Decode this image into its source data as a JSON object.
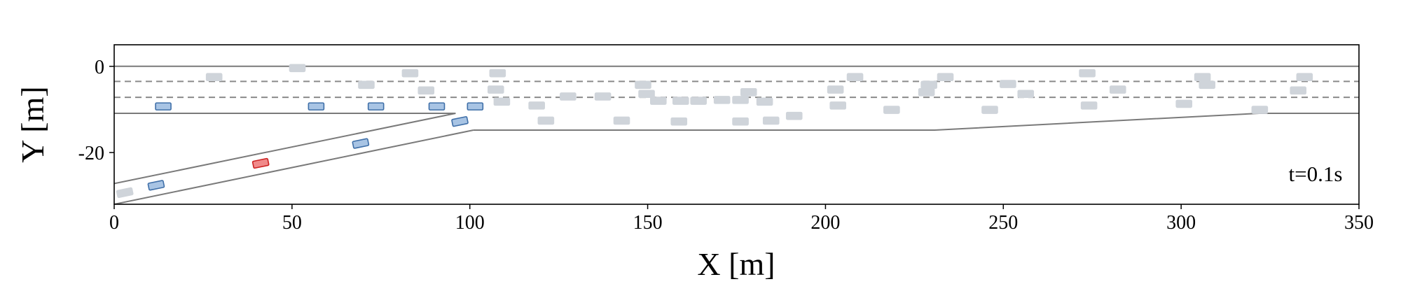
{
  "chart_data": {
    "type": "scatter",
    "x_label": "X [m]",
    "y_label": "Y [m]",
    "annotation": "t=0.1s",
    "xlim": [
      0,
      350
    ],
    "ylim": [
      5,
      -32
    ],
    "xticks": [
      0,
      50,
      100,
      150,
      200,
      250,
      300,
      350
    ],
    "yticks": [
      0,
      -20
    ],
    "lines": [
      {
        "color": "#7a7a7a",
        "style": "solid",
        "x": [
          0,
          350
        ],
        "values": [
          0,
          0
        ]
      },
      {
        "color": "#8a8a8a",
        "style": "dashed",
        "x": [
          0,
          350
        ],
        "values": [
          -3.5,
          -3.5
        ]
      },
      {
        "color": "#8a8a8a",
        "style": "dashed",
        "x": [
          0,
          350
        ],
        "values": [
          -7.2,
          -7.2
        ]
      },
      {
        "color": "#7a7a7a",
        "style": "solid",
        "x": [
          0,
          96
        ],
        "values": [
          -10.9,
          -10.9
        ]
      },
      {
        "color": "#7a7a7a",
        "style": "solid",
        "x": [
          0,
          96
        ],
        "values": [
          -27.2,
          -10.9
        ]
      },
      {
        "color": "#7a7a7a",
        "style": "solid",
        "x": [
          0,
          101
        ],
        "values": [
          -32,
          -14.8
        ]
      },
      {
        "color": "#7a7a7a",
        "style": "solid",
        "x": [
          101,
          230.7,
          322,
          350
        ],
        "values": [
          -14.8,
          -14.8,
          -10.9,
          -10.9
        ]
      }
    ],
    "series": [
      {
        "color": "#cfd4da",
        "edgecolor": "#cfd4da",
        "heading": 0,
        "x": [
          28.1,
          51.5,
          70.9,
          83.2,
          87.7,
          107.8,
          107.3,
          109.0,
          118.8,
          121.4,
          127.6,
          137.4,
          142.7,
          148.7,
          149.7,
          153.0,
          159.3,
          158.8,
          164.3,
          170.9,
          176.1,
          176.1,
          178.4,
          182.9,
          184.7,
          191.2,
          202.8,
          203.5,
          208.3,
          218.6,
          228.4,
          229.1,
          233.7,
          246.2,
          251.3,
          256.3,
          273.6,
          274.1,
          282.2,
          300.8,
          306.0,
          307.3,
          322.1,
          332.9,
          334.7
        ],
        "values": [
          -2.5,
          -0.4,
          -4.3,
          -1.6,
          -5.6,
          -1.6,
          -5.4,
          -8.2,
          -9.1,
          -12.6,
          -7.0,
          -7.0,
          -12.6,
          -4.3,
          -6.4,
          -8.0,
          -8.0,
          -12.8,
          -8.0,
          -7.8,
          -7.8,
          -12.8,
          -6.0,
          -8.2,
          -12.6,
          -11.5,
          -5.4,
          -9.1,
          -2.5,
          -10.1,
          -6.0,
          -4.3,
          -2.5,
          -10.1,
          -4.1,
          -6.4,
          -1.6,
          -9.1,
          -5.4,
          -8.7,
          -2.5,
          -4.3,
          -10.1,
          -5.6,
          -2.5
        ]
      },
      {
        "color": "#cfd4da",
        "edgecolor": "#cfd4da",
        "heading": 9.6,
        "x": [
          3.0
        ],
        "values": [
          -29.3
        ]
      },
      {
        "color": "#a8c4e4",
        "edgecolor": "#3f6fa8",
        "heading": 0,
        "x": [
          13.8,
          56.8,
          73.6,
          90.7,
          101.5
        ],
        "values": [
          -9.3,
          -9.3,
          -9.3,
          -9.3,
          -9.3
        ]
      },
      {
        "color": "#a8c4e4",
        "edgecolor": "#3f6fa8",
        "heading": 9.6,
        "x": [
          11.8,
          69.3,
          97.2
        ],
        "values": [
          -27.6,
          -17.9,
          -12.8
        ]
      },
      {
        "color": "#f08a8a",
        "edgecolor": "#cc2222",
        "heading": 9.6,
        "x": [
          41.2
        ],
        "values": [
          -22.5
        ]
      }
    ]
  }
}
